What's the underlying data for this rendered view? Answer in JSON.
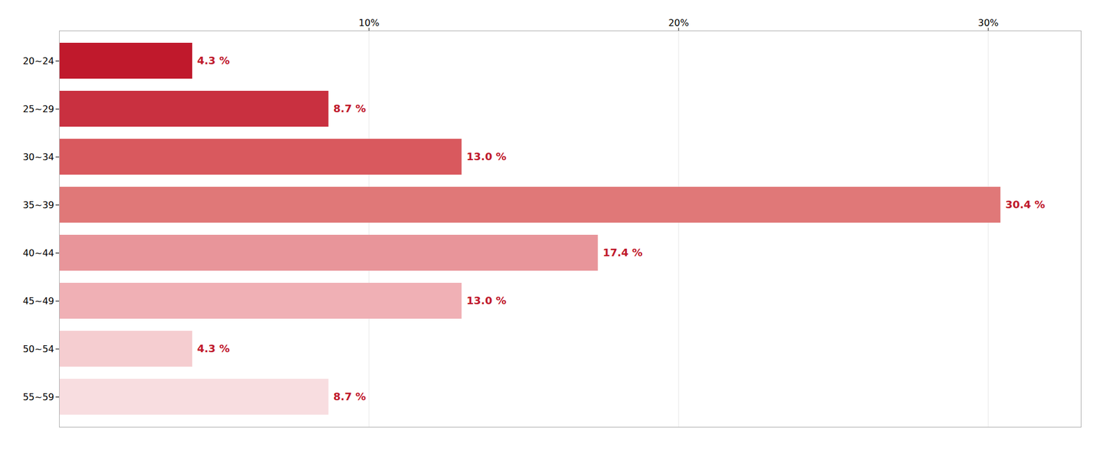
{
  "chart_data": {
    "type": "bar",
    "orientation": "horizontal",
    "categories": [
      "20~24",
      "25~29",
      "30~34",
      "35~39",
      "40~44",
      "45~49",
      "50~54",
      "55~59"
    ],
    "values": [
      4.3,
      8.7,
      13.0,
      30.4,
      17.4,
      13.0,
      4.3,
      8.7
    ],
    "value_labels": [
      "4.3 %",
      "8.7 %",
      "13.0 %",
      "30.4 %",
      "17.4 %",
      "13.0 %",
      "4.3 %",
      "8.7 %"
    ],
    "colors": [
      "#c0192c",
      "#c93040",
      "#d9595e",
      "#e07878",
      "#e8959a",
      "#f0b0b5",
      "#f5cdd0",
      "#f8dde0"
    ],
    "xlim": [
      0,
      33
    ],
    "xticks": [
      {
        "value": 10,
        "label": "10%"
      },
      {
        "value": 20,
        "label": "20%"
      },
      {
        "value": 30,
        "label": "30%"
      }
    ],
    "grid": true,
    "data_labels": true
  }
}
